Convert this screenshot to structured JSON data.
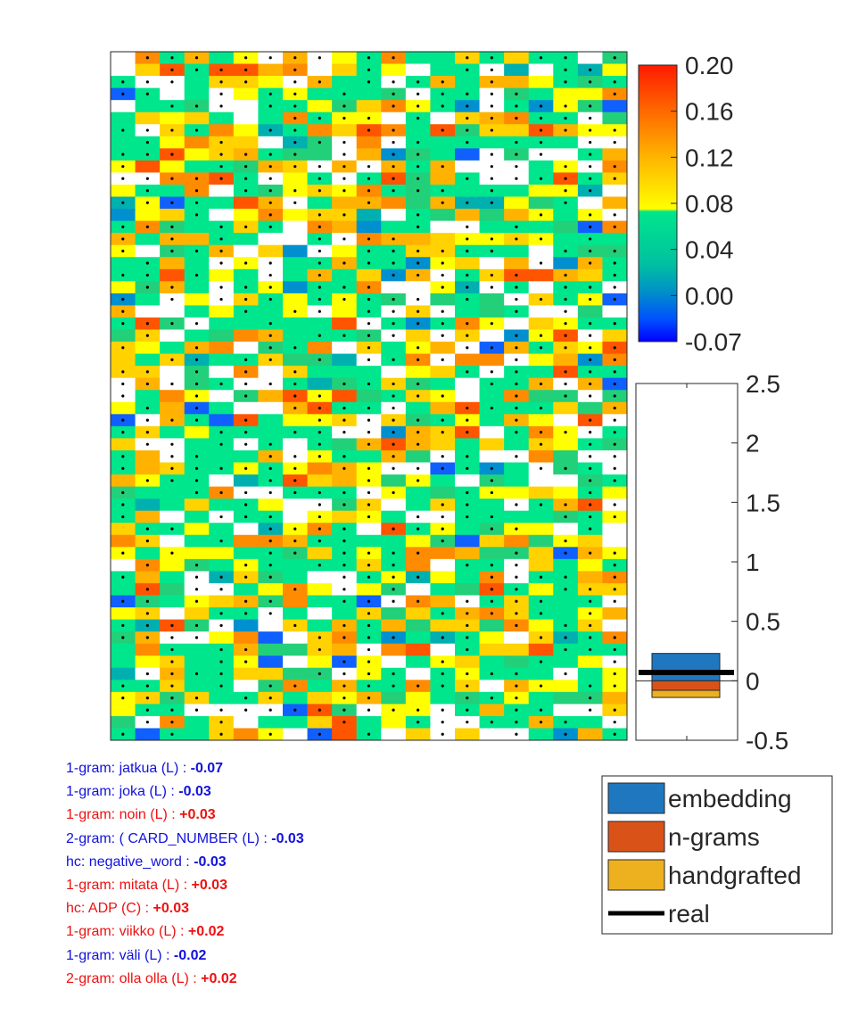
{
  "chart_data": [
    {
      "type": "heatmap",
      "rows": 57,
      "cols": 21,
      "grid": false,
      "note": "cell values follow a seeded random pattern on the colorbar scale; dots mark a subset of cells",
      "blank_color": "#ffffff"
    },
    {
      "type": "colorbar",
      "tick_labels": [
        "0.20",
        "0.16",
        "0.12",
        "0.08",
        "0.04",
        "0.00",
        "-0.07"
      ],
      "range": [
        -0.07,
        0.2
      ],
      "colors": [
        "#ff1a00",
        "#ff6a00",
        "#ffb300",
        "#ffff00",
        "#00e68c",
        "#00a0c8",
        "#0060ff",
        "#0000ff"
      ]
    },
    {
      "type": "bar",
      "ylim": [
        -0.5,
        2.5
      ],
      "yticks": [
        "2.5",
        "2",
        "1.5",
        "1",
        "0.5",
        "0",
        "-0.5"
      ],
      "series": [
        {
          "name": "embedding",
          "value": 0.23,
          "color": "#1f77c0"
        },
        {
          "name": "n-grams",
          "value": -0.08,
          "color": "#d95319"
        },
        {
          "name": "handgrafted",
          "value": -0.06,
          "color": "#edb120"
        }
      ],
      "real": {
        "name": "real",
        "value": 0.07,
        "color": "#000000"
      }
    }
  ],
  "legend": {
    "items": [
      {
        "label": "embedding",
        "color": "#1f77c0"
      },
      {
        "label": "n-grams",
        "color": "#d95319"
      },
      {
        "label": "handgrafted",
        "color": "#edb120"
      },
      {
        "label": "real",
        "color": "#000000",
        "line": true
      }
    ]
  },
  "features": [
    {
      "label": "1-gram: jatkua (L) :",
      "value": "-0.07",
      "sign": "neg"
    },
    {
      "label": "1-gram: joka (L) :",
      "value": "-0.03",
      "sign": "neg"
    },
    {
      "label": "1-gram: noin (L) :",
      "value": "+0.03",
      "sign": "pos"
    },
    {
      "label": "2-gram: ( CARD_NUMBER (L) :",
      "value": "-0.03",
      "sign": "neg"
    },
    {
      "label": "hc: negative_word :",
      "value": "-0.03",
      "sign": "neg"
    },
    {
      "label": "1-gram: mitata (L) :",
      "value": "+0.03",
      "sign": "pos"
    },
    {
      "label": "hc: ADP (C) :",
      "value": "+0.03",
      "sign": "pos"
    },
    {
      "label": "1-gram: viikko (L) :",
      "value": "+0.02",
      "sign": "pos"
    },
    {
      "label": "1-gram: väli (L) :",
      "value": "-0.02",
      "sign": "neg"
    },
    {
      "label": "2-gram: olla olla (L) :",
      "value": "+0.02",
      "sign": "pos"
    }
  ]
}
